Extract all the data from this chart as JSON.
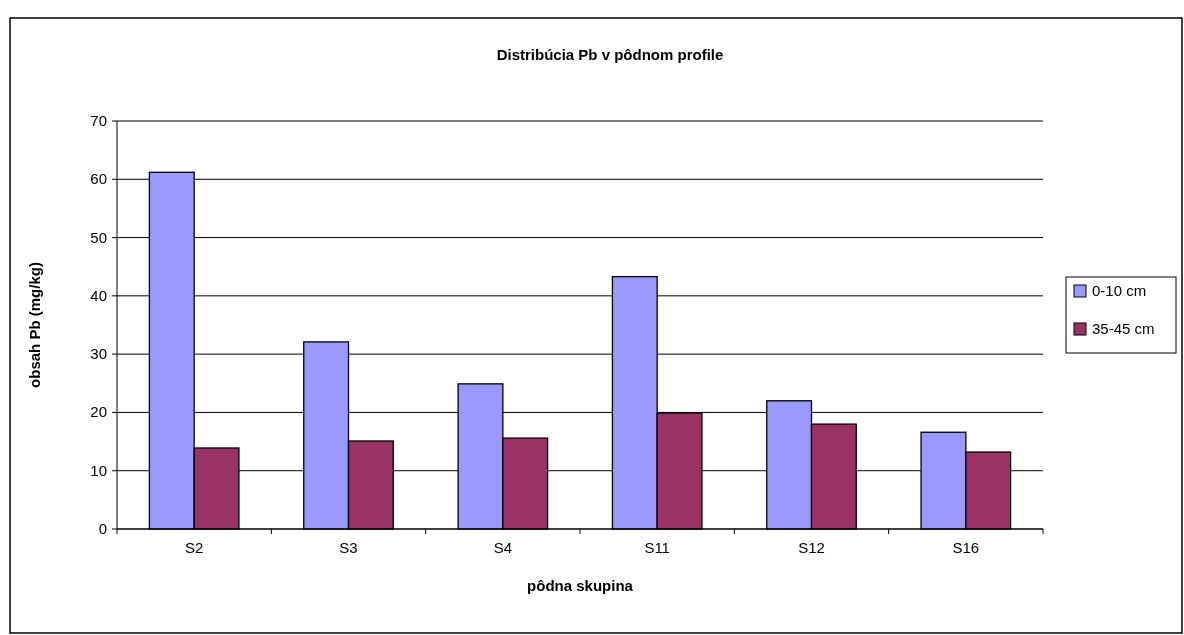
{
  "chart_data": {
    "type": "bar",
    "title": "Distribúcia Pb v pôdnom profile",
    "xlabel": "pôdna skupina",
    "ylabel": "obsah Pb (mg/kg)",
    "categories": [
      "S2",
      "S3",
      "S4",
      "S11",
      "S12",
      "S16"
    ],
    "series": [
      {
        "name": "0-10 cm",
        "color": "#9999ff",
        "values": [
          61.2,
          32.1,
          24.9,
          43.3,
          22.0,
          16.6
        ]
      },
      {
        "name": "35-45 cm",
        "color": "#993366",
        "values": [
          13.9,
          15.1,
          15.6,
          19.9,
          18.0,
          13.2
        ]
      }
    ],
    "ylim": [
      0,
      70
    ],
    "yticks": [
      0,
      10,
      20,
      30,
      40,
      50,
      60,
      70
    ],
    "grid": "y",
    "legend": "right"
  }
}
